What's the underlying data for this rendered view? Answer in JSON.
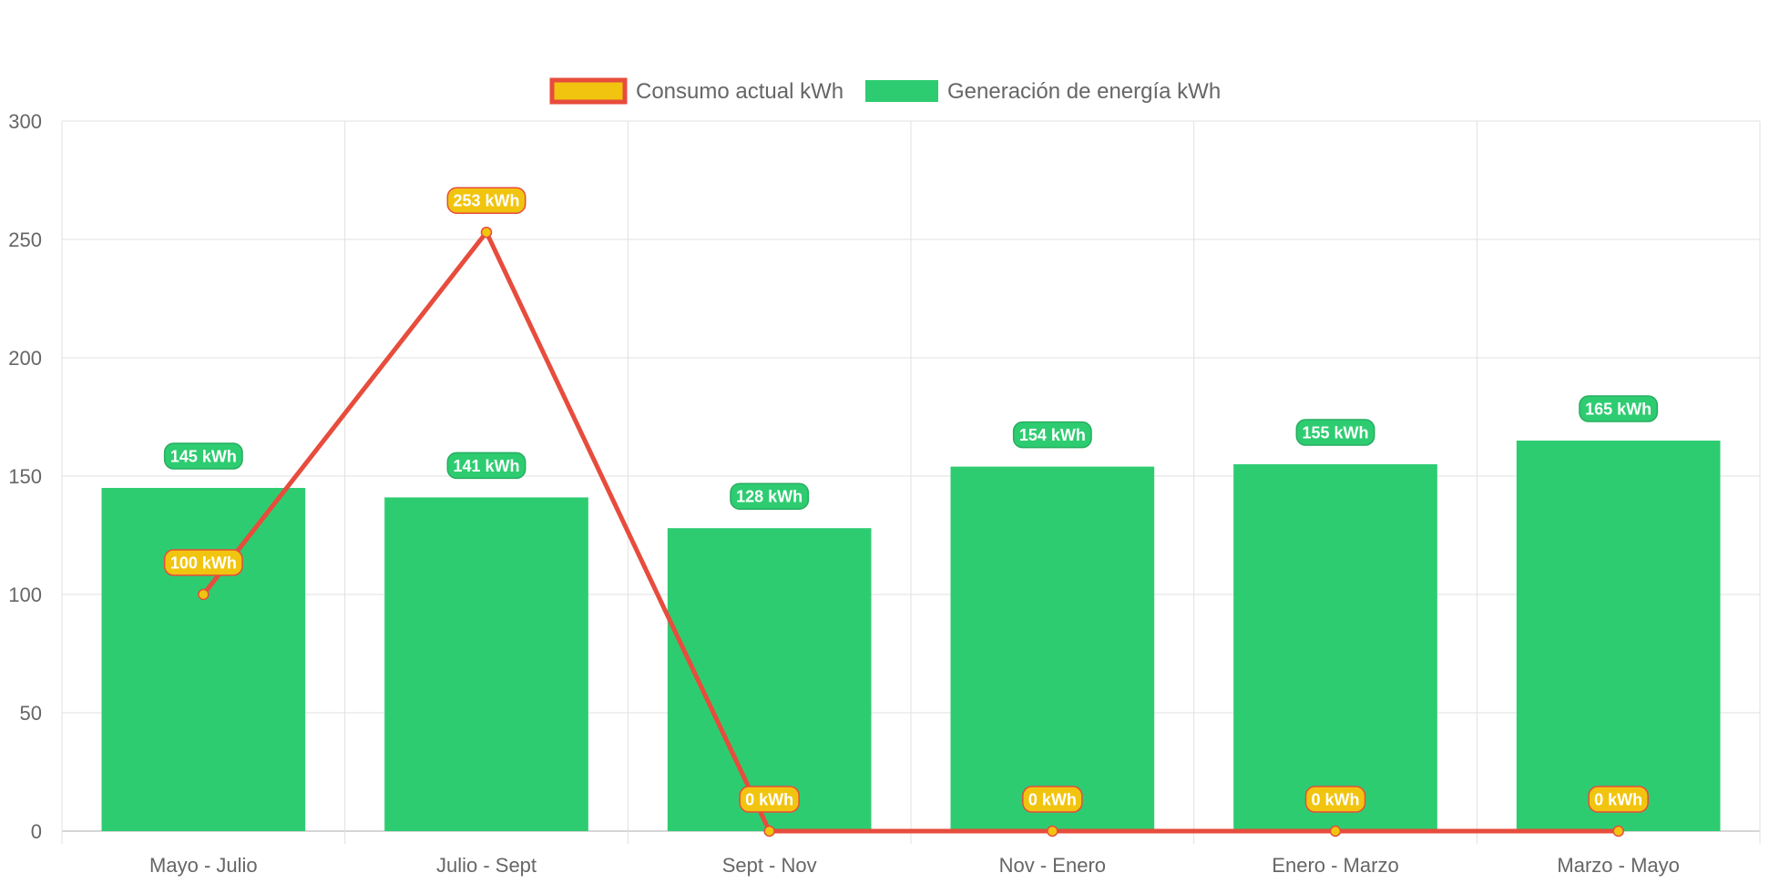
{
  "chart_data": {
    "type": "bar",
    "categories": [
      "Mayo - Julio",
      "Julio - Sept",
      "Sept - Nov",
      "Nov - Enero",
      "Enero - Marzo",
      "Marzo - Mayo"
    ],
    "series": [
      {
        "name": "Consumo actual kWh",
        "type": "line",
        "values": [
          100,
          253,
          0,
          0,
          0,
          0
        ],
        "labels": [
          "100 kWh",
          "253 kWh",
          "0 kWh",
          "0 kWh",
          "0 kWh",
          "0 kWh"
        ],
        "color": "#e74c3c",
        "fill": "#f1c40f"
      },
      {
        "name": "Generación de energía kWh",
        "type": "bar",
        "values": [
          145,
          141,
          128,
          154,
          155,
          165
        ],
        "labels": [
          "145 kWh",
          "141 kWh",
          "128 kWh",
          "154 kWh",
          "155 kWh",
          "165 kWh"
        ],
        "color": "#2ecc71"
      }
    ],
    "ylim": [
      0,
      300
    ],
    "yticks": [
      0,
      50,
      100,
      150,
      200,
      250,
      300
    ],
    "grid": true,
    "legend": "top-center"
  }
}
